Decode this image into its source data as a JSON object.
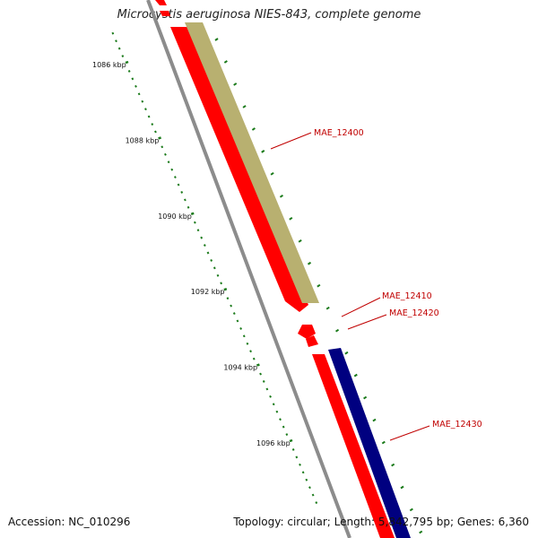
{
  "title": "Microcystis aeruginosa NIES-843, complete genome",
  "footer": {
    "accession": "Accession: NC_010296",
    "stats": "Topology: circular; Length: 5,842,795 bp; Genes: 6,360"
  },
  "ruler": {
    "color": "#1a7a1a",
    "ticks": [
      {
        "kbp": 1086,
        "label": "1086 kbp"
      },
      {
        "kbp": 1088,
        "label": "1088 kbp"
      },
      {
        "kbp": 1090,
        "label": "1090 kbp"
      },
      {
        "kbp": 1092,
        "label": "1092 kbp"
      },
      {
        "kbp": 1094,
        "label": "1094 kbp"
      },
      {
        "kbp": 1096,
        "label": "1096 kbp"
      }
    ]
  },
  "tracks": {
    "backbone_color": "#8c8c8c",
    "cds_color": "#ff0000",
    "rna_color": "#b8b070",
    "blue_color": "#000080"
  },
  "genes": [
    {
      "name": "MAE_12400",
      "label": "MAE_12400"
    },
    {
      "name": "MAE_12410",
      "label": "MAE_12410"
    },
    {
      "name": "MAE_12420",
      "label": "MAE_12420"
    },
    {
      "name": "MAE_12430",
      "label": "MAE_12430"
    }
  ]
}
